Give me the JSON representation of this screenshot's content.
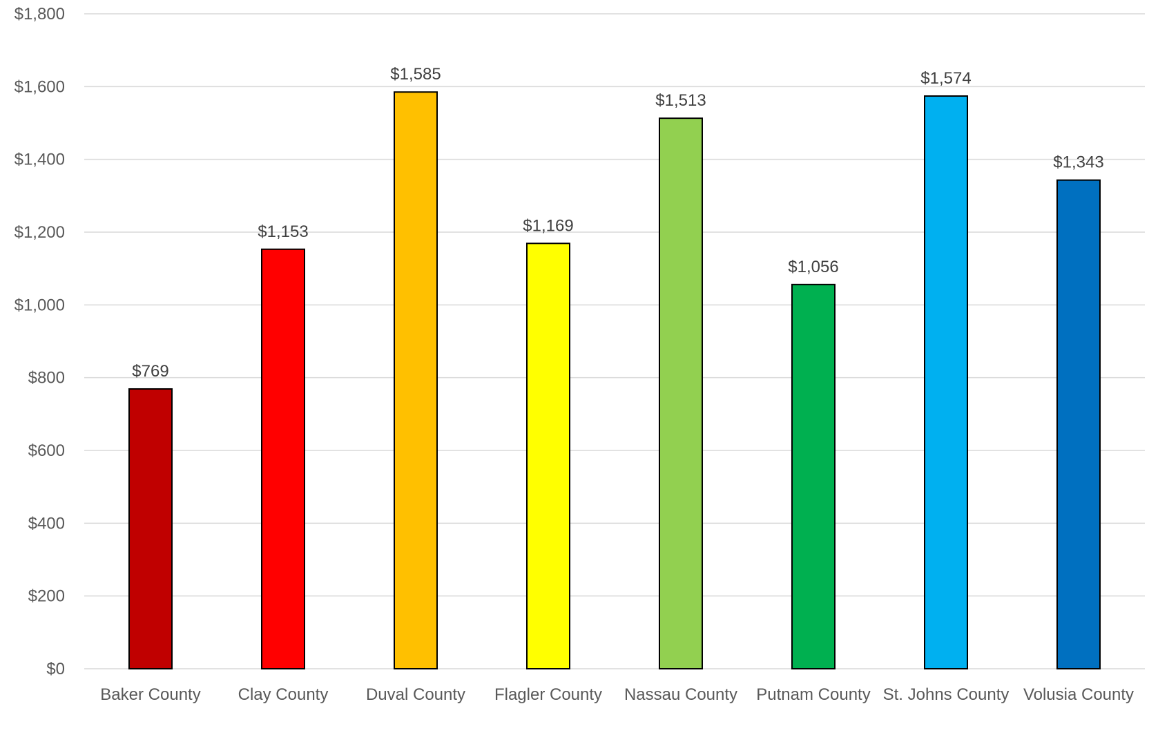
{
  "chart_data": {
    "type": "bar",
    "title": "",
    "xlabel": "",
    "ylabel": "",
    "categories": [
      "Baker County",
      "Clay County",
      "Duval County",
      "Flagler County",
      "Nassau County",
      "Putnam County",
      "St. Johns County",
      "Volusia County"
    ],
    "values": [
      769,
      1153,
      1585,
      1169,
      1513,
      1056,
      1574,
      1343
    ],
    "data_labels": [
      "$769",
      "$1,153",
      "$1,585",
      "$1,169",
      "$1,513",
      "$1,056",
      "$1,574",
      "$1,343"
    ],
    "bar_colors": [
      "#c00000",
      "#ff0000",
      "#ffc000",
      "#ffff00",
      "#92d050",
      "#00b050",
      "#00b0f0",
      "#0070c0"
    ],
    "ylim": [
      0,
      1800
    ],
    "yticks": [
      0,
      200,
      400,
      600,
      800,
      1000,
      1200,
      1400,
      1600,
      1800
    ],
    "ytick_labels": [
      "$0",
      "$200",
      "$400",
      "$600",
      "$800",
      "$1,000",
      "$1,200",
      "$1,400",
      "$1,600",
      "$1,800"
    ],
    "grid": true,
    "legend": "none"
  }
}
